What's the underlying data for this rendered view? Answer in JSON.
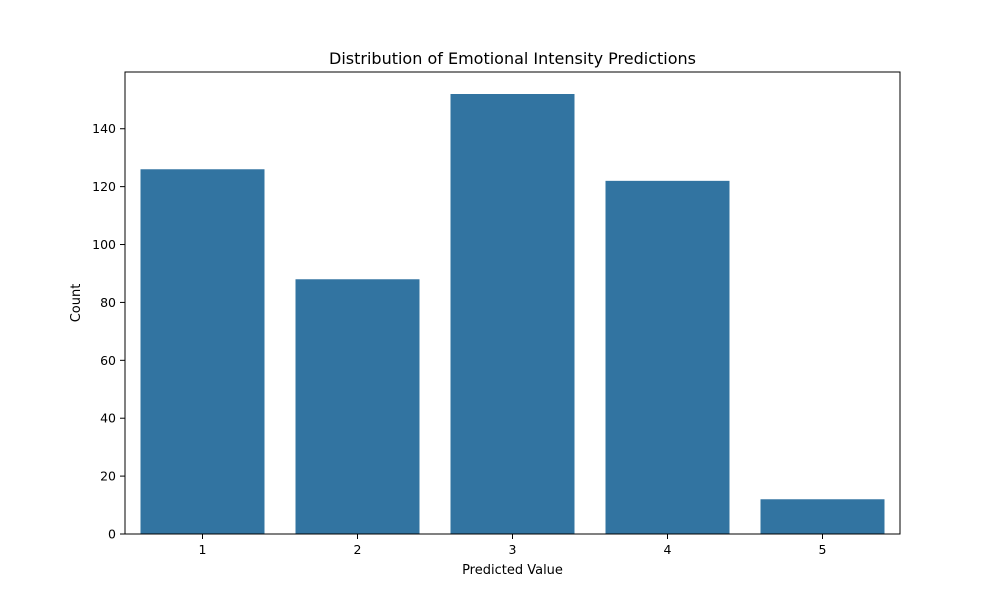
{
  "chart_data": {
    "type": "bar",
    "title": "Distribution of Emotional Intensity Predictions",
    "xlabel": "Predicted Value",
    "ylabel": "Count",
    "categories": [
      "1",
      "2",
      "3",
      "4",
      "5"
    ],
    "values": [
      126,
      88,
      152,
      122,
      12
    ],
    "ylim": [
      0,
      159.6
    ],
    "yticks": [
      0,
      20,
      40,
      60,
      80,
      100,
      120,
      140
    ],
    "grid": false,
    "bar_color": "#3274a1",
    "background_color": "#ffffff"
  }
}
